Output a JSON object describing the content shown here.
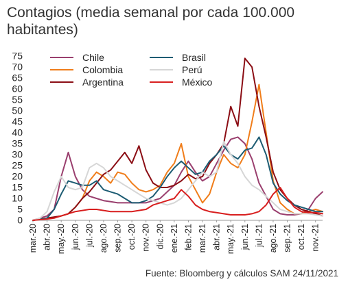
{
  "title": {
    "line1": "Contagios (media semanal por cada 100.000",
    "line2": "habitantes)"
  },
  "source": "Fuente: Bloomberg y cálculos SAM 24/11/2021",
  "chart_data": {
    "type": "line",
    "title": "Contagios (media semanal por cada 100.000 habitantes)",
    "xlabel": "",
    "ylabel": "",
    "ylim": [
      0,
      75
    ],
    "yticks": [
      0,
      5,
      10,
      15,
      20,
      25,
      30,
      35,
      40,
      45,
      50,
      55,
      60,
      65,
      70,
      75
    ],
    "xticks": [
      "mar.-20",
      "abr.-20",
      "may.-20",
      "jun.-20",
      "jul.-20",
      "ago.-20",
      "sep.-20",
      "oct.-20",
      "nov.-20",
      "dic.-20",
      "ene.-21",
      "feb.-21",
      "mar.-21",
      "abr.-21",
      "may.-21",
      "jun.-21",
      "jul.-21",
      "ago.-21",
      "sep.-21",
      "oct.-21",
      "nov.-21"
    ],
    "x": [
      0,
      0.5,
      1,
      1.5,
      2,
      2.5,
      3,
      3.5,
      4,
      4.5,
      5,
      5.5,
      6,
      6.5,
      7,
      7.5,
      8,
      8.5,
      9,
      9.5,
      10,
      10.5,
      11,
      11.5,
      12,
      12.5,
      13,
      13.5,
      14,
      14.5,
      15,
      15.5,
      16,
      16.5,
      17,
      17.5,
      18,
      18.5,
      19,
      19.5,
      20,
      20.5
    ],
    "grid": false,
    "legend_position": "top-left",
    "series": [
      {
        "name": "Chile",
        "color": "#9a3f6e",
        "values": [
          0,
          1,
          2,
          5,
          20,
          31,
          20,
          14,
          11,
          10,
          9,
          8.5,
          8,
          8,
          8,
          8,
          8,
          9,
          10,
          13,
          16,
          22,
          27,
          22,
          18,
          20,
          26,
          32,
          37,
          38,
          35,
          28,
          17,
          11,
          5,
          3,
          2.5,
          2.5,
          3,
          5,
          10,
          13
        ]
      },
      {
        "name": "Colombia",
        "color": "#f07d1a",
        "values": [
          0,
          0.5,
          1,
          1.5,
          2,
          3,
          6,
          10,
          18,
          22,
          20,
          17,
          22,
          21,
          17,
          14,
          13,
          14,
          16,
          22,
          26,
          35,
          20,
          14,
          8,
          12,
          22,
          30,
          26,
          24,
          30,
          45,
          62,
          40,
          18,
          8,
          5,
          3,
          3,
          4,
          5,
          4
        ]
      },
      {
        "name": "Argentina",
        "color": "#8b0d14",
        "values": [
          0,
          0.5,
          1,
          1.5,
          2,
          3,
          6,
          10,
          13,
          17,
          21,
          23,
          27,
          31,
          26,
          34,
          23,
          17,
          15,
          15,
          16,
          18,
          21,
          19,
          20,
          26,
          30,
          35,
          52,
          43,
          74,
          70,
          52,
          38,
          22,
          14,
          10,
          7,
          5,
          4,
          3,
          2
        ]
      },
      {
        "name": "Brasil",
        "color": "#1d5c73",
        "values": [
          0,
          0.5,
          1,
          5,
          12,
          18,
          17,
          16,
          16,
          18,
          14,
          13,
          12,
          10,
          8,
          8,
          9,
          11,
          15,
          20,
          24,
          27,
          24,
          21,
          22,
          27,
          30,
          34,
          30,
          28,
          32,
          33,
          38,
          30,
          17,
          12,
          9,
          7,
          6,
          5,
          4,
          4
        ]
      },
      {
        "name": "Perú",
        "color": "#d6d6d6",
        "values": [
          0,
          1,
          4,
          13,
          20,
          15,
          14,
          15,
          24,
          26,
          24,
          20,
          18,
          16,
          14,
          12,
          10,
          9,
          8,
          7,
          8,
          10,
          14,
          18,
          22,
          20,
          22,
          36,
          30,
          26,
          20,
          16,
          14,
          11,
          8,
          5,
          4,
          3,
          3,
          3,
          2.5,
          2
        ]
      },
      {
        "name": "México",
        "color": "#d81e1e",
        "values": [
          0,
          0.3,
          0.6,
          1,
          2,
          3,
          4,
          4.5,
          5,
          5,
          4.5,
          4,
          4,
          4,
          4,
          4.5,
          5,
          7,
          8,
          9,
          10,
          14,
          11,
          7,
          5,
          4,
          3.5,
          3,
          2.5,
          2.5,
          2.5,
          3,
          4,
          7,
          12,
          15,
          10,
          6,
          4,
          3.5,
          3.5,
          3
        ]
      }
    ]
  }
}
